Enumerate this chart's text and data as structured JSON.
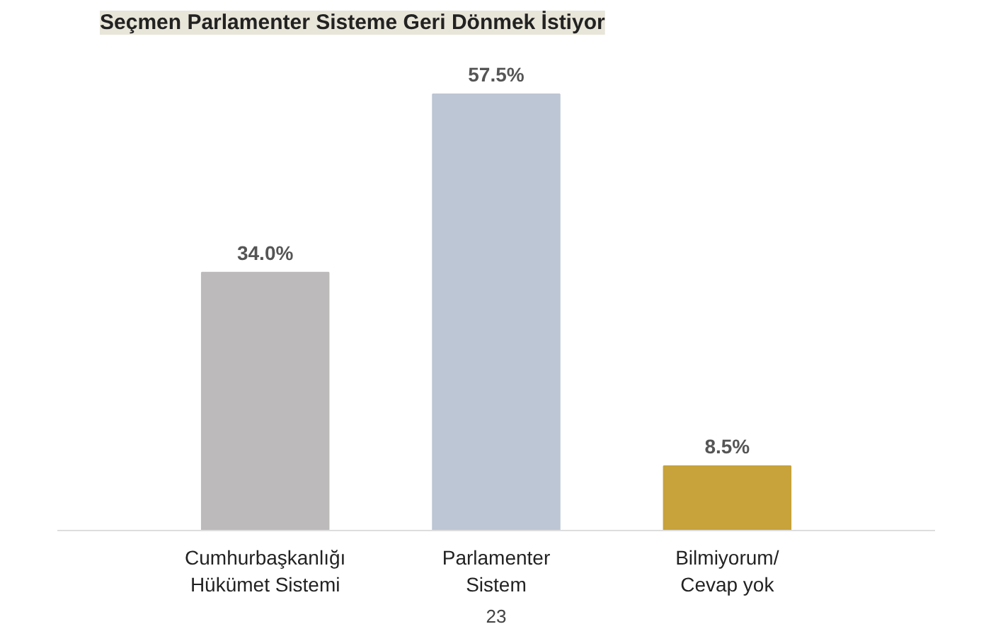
{
  "chart_data": {
    "type": "bar",
    "title": "Seçmen Parlamenter Sisteme Geri Dönmek İstiyor",
    "categories": [
      "Cumhurbaşkanlığı\nHükümet Sistemi",
      "Parlamenter\nSistem",
      "Bilmiyorum/\nCevap yok"
    ],
    "values": [
      34.0,
      57.5,
      8.5
    ],
    "colors": [
      "#bcbaba",
      "#bcc6d4",
      "#c8a23a"
    ],
    "value_labels": [
      "34.0%",
      "57.5%",
      "8.5%"
    ],
    "annotations": [
      "23"
    ],
    "grid": false
  }
}
